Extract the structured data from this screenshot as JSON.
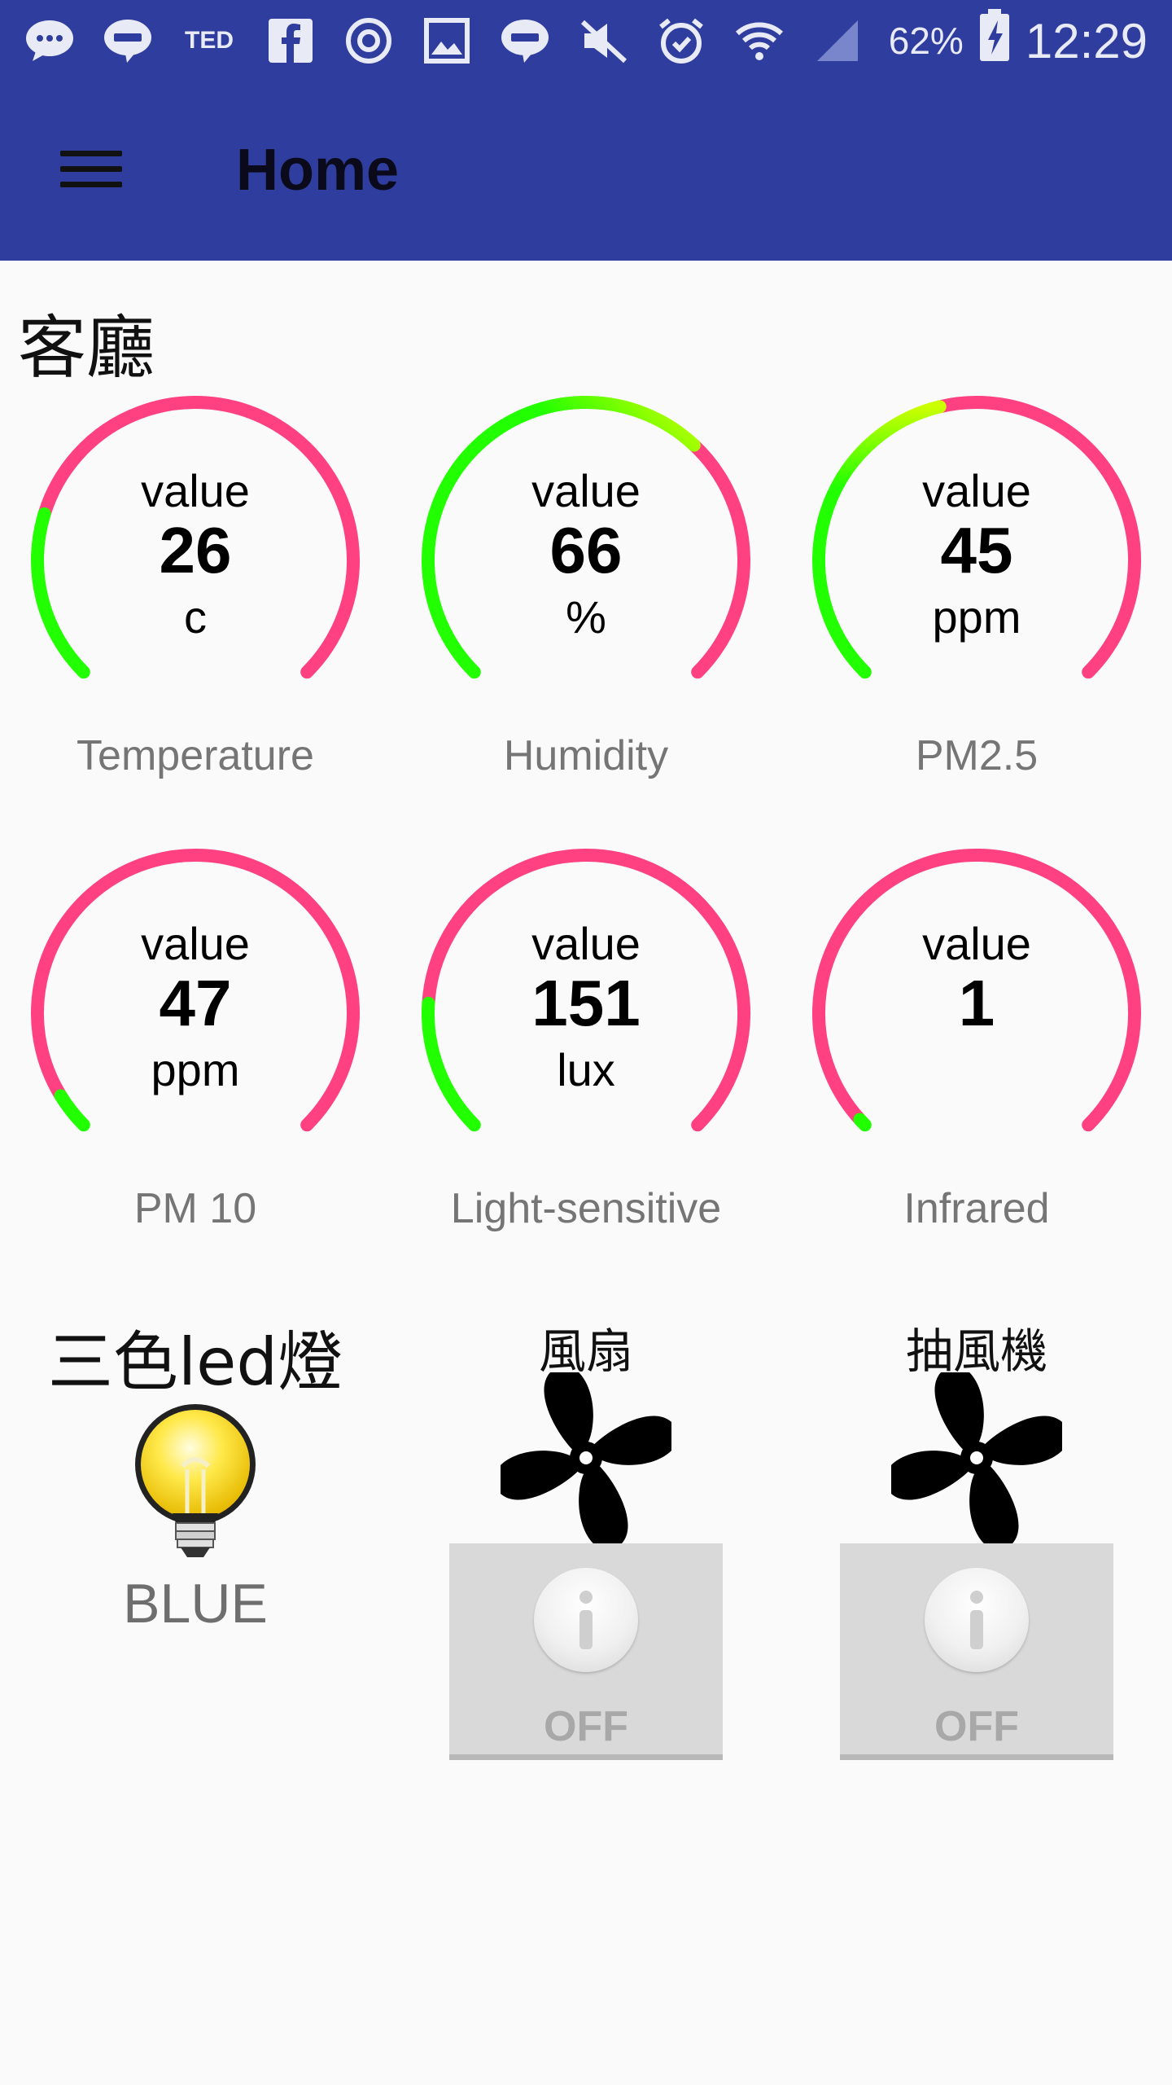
{
  "status_bar": {
    "notification_icons": [
      "messenger-icon",
      "line-icon",
      "ted-icon",
      "facebook-icon",
      "sync-icon",
      "gallery-icon",
      "line-icon",
      "mute-icon",
      "alarm-icon",
      "wifi-icon",
      "signal-icon"
    ],
    "ted_text": "TED",
    "battery": "62%",
    "time": "12:29"
  },
  "app_bar": {
    "title": "Home"
  },
  "room": {
    "title": "客廳"
  },
  "colors": {
    "primary": "#2f3e9e",
    "gauge_track": "#ff4081",
    "gauge_low": "#22ff00",
    "gauge_mid": "#ccff00"
  },
  "gauges": [
    {
      "label": "value",
      "value": "26",
      "unit": "c",
      "name": "Temperature",
      "level": 0.23
    },
    {
      "label": "value",
      "value": "66",
      "unit": "%",
      "name": "Humidity",
      "level": 0.66
    },
    {
      "label": "value",
      "value": "45",
      "unit": "ppm",
      "name": "PM2.5",
      "level": 0.45
    },
    {
      "label": "value",
      "value": "47",
      "unit": "ppm",
      "name": "PM 10",
      "level": 0.05
    },
    {
      "label": "value",
      "value": "151",
      "unit": "lux",
      "name": "Light-sensitive",
      "level": 0.18
    },
    {
      "label": "value",
      "value": "1",
      "unit": "",
      "name": "Infrared",
      "level": 0.01
    }
  ],
  "devices": {
    "led": {
      "title": "三色led燈",
      "state": "BLUE",
      "icon": "lightbulb-icon"
    },
    "fan": {
      "title": "風扇",
      "switch": "OFF",
      "icon": "fan-icon"
    },
    "exhaust": {
      "title": "抽風機",
      "switch": "OFF",
      "icon": "fan-icon"
    }
  }
}
